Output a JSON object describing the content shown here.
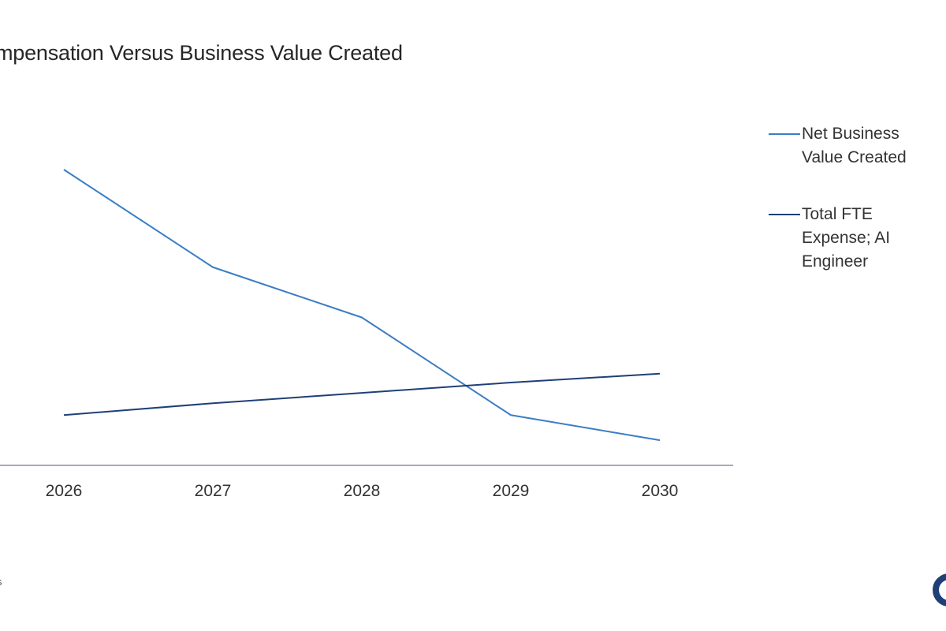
{
  "title": "mpensation Versus Business Value Created",
  "footnote": "s",
  "colors": {
    "net_value": "#3b7dc4",
    "fte_expense": "#1f3f77",
    "axis": "#8a8fa3",
    "logo": "#1f3f77"
  },
  "chart_data": {
    "type": "line",
    "x": [
      "2026",
      "2027",
      "2028",
      "2029",
      "2030"
    ],
    "ylim": [
      0,
      100
    ],
    "grid": false,
    "legend_position": "right",
    "series": [
      {
        "name": "Net Business Value Created",
        "color": "#3b7dc4",
        "values": [
          100,
          67,
          50,
          17,
          8.5
        ]
      },
      {
        "name": "Total FTE Expense; AI Engineer",
        "color": "#1f3f77",
        "values": [
          17,
          21,
          24.5,
          28,
          31
        ]
      }
    ]
  }
}
